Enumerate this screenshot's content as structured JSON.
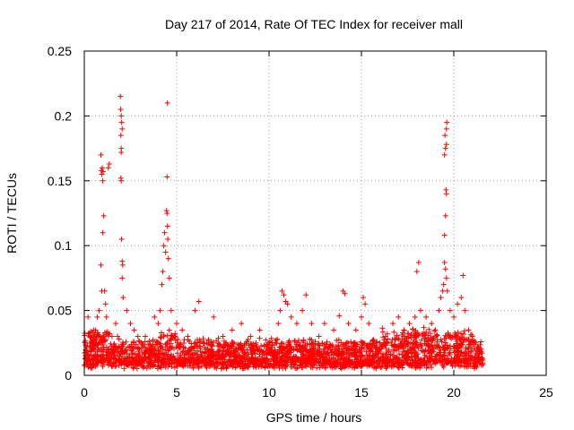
{
  "chart_data": {
    "type": "scatter",
    "title": "Day 217 of 2014, Rate Of TEC Index for receiver mall",
    "xlabel": "GPS time / hours",
    "ylabel": "ROTI / TECUs",
    "xlim": [
      0,
      25
    ],
    "ylim": [
      0,
      0.25
    ],
    "xticks": [
      0,
      5,
      10,
      15,
      20,
      25
    ],
    "xtick_labels": [
      "0",
      "5",
      "10",
      "15",
      "20",
      "25"
    ],
    "yticks": [
      0,
      0.05,
      0.1,
      0.15,
      0.2,
      0.25
    ],
    "ytick_labels": [
      "0",
      "0.05",
      "0.1",
      "0.15",
      "0.2",
      "0.25"
    ],
    "grid": true,
    "marker": "+",
    "color": "#ff0000",
    "series": [
      {
        "name": "ROTI",
        "points": [
          [
            0.1,
            0.015
          ],
          [
            0.2,
            0.045
          ],
          [
            0.3,
            0.03
          ],
          [
            0.4,
            0.02
          ],
          [
            0.5,
            0.035
          ],
          [
            0.6,
            0.025
          ],
          [
            0.7,
            0.045
          ],
          [
            0.8,
            0.05
          ],
          [
            0.9,
            0.085
          ],
          [
            0.95,
            0.065
          ],
          [
            1.0,
            0.11
          ],
          [
            1.05,
            0.123
          ],
          [
            1.1,
            0.065
          ],
          [
            1.15,
            0.055
          ],
          [
            1.2,
            0.045
          ],
          [
            0.9,
            0.17
          ],
          [
            0.92,
            0.158
          ],
          [
            0.95,
            0.155
          ],
          [
            0.97,
            0.16
          ],
          [
            1.0,
            0.15
          ],
          [
            1.02,
            0.157
          ],
          [
            1.35,
            0.163
          ],
          [
            1.3,
            0.16
          ],
          [
            1.5,
            0.03
          ],
          [
            1.7,
            0.04
          ],
          [
            1.8,
            0.03
          ],
          [
            1.95,
            0.215
          ],
          [
            1.97,
            0.205
          ],
          [
            2.0,
            0.2
          ],
          [
            2.02,
            0.195
          ],
          [
            2.05,
            0.19
          ],
          [
            1.98,
            0.185
          ],
          [
            2.0,
            0.175
          ],
          [
            2.0,
            0.172
          ],
          [
            1.98,
            0.152
          ],
          [
            2.0,
            0.15
          ],
          [
            2.02,
            0.105
          ],
          [
            2.05,
            0.088
          ],
          [
            2.08,
            0.085
          ],
          [
            2.05,
            0.075
          ],
          [
            2.1,
            0.06
          ],
          [
            2.3,
            0.05
          ],
          [
            2.5,
            0.04
          ],
          [
            2.7,
            0.035
          ],
          [
            2.9,
            0.03
          ],
          [
            3.1,
            0.025
          ],
          [
            3.3,
            0.03
          ],
          [
            3.6,
            0.02
          ],
          [
            3.8,
            0.045
          ],
          [
            4.0,
            0.04
          ],
          [
            4.1,
            0.05
          ],
          [
            4.2,
            0.07
          ],
          [
            4.25,
            0.08
          ],
          [
            4.3,
            0.1
          ],
          [
            4.35,
            0.11
          ],
          [
            4.4,
            0.095
          ],
          [
            4.45,
            0.127
          ],
          [
            4.48,
            0.125
          ],
          [
            4.5,
            0.115
          ],
          [
            4.52,
            0.105
          ],
          [
            4.55,
            0.09
          ],
          [
            4.6,
            0.075
          ],
          [
            4.5,
            0.21
          ],
          [
            4.48,
            0.153
          ],
          [
            4.7,
            0.05
          ],
          [
            5.0,
            0.04
          ],
          [
            5.3,
            0.035
          ],
          [
            5.6,
            0.03
          ],
          [
            6.0,
            0.05
          ],
          [
            6.2,
            0.057
          ],
          [
            6.5,
            0.025
          ],
          [
            7.0,
            0.045
          ],
          [
            7.5,
            0.03
          ],
          [
            8.0,
            0.035
          ],
          [
            8.5,
            0.04
          ],
          [
            9.0,
            0.03
          ],
          [
            9.5,
            0.035
          ],
          [
            10.0,
            0.025
          ],
          [
            10.5,
            0.04
          ],
          [
            10.6,
            0.05
          ],
          [
            10.7,
            0.065
          ],
          [
            10.8,
            0.062
          ],
          [
            10.9,
            0.057
          ],
          [
            11.0,
            0.055
          ],
          [
            11.2,
            0.045
          ],
          [
            11.5,
            0.04
          ],
          [
            11.8,
            0.05
          ],
          [
            12.0,
            0.062
          ],
          [
            12.3,
            0.04
          ],
          [
            12.7,
            0.03
          ],
          [
            13.0,
            0.04
          ],
          [
            13.5,
            0.035
          ],
          [
            13.8,
            0.046
          ],
          [
            14.0,
            0.065
          ],
          [
            14.1,
            0.063
          ],
          [
            14.3,
            0.04
          ],
          [
            14.7,
            0.035
          ],
          [
            15.0,
            0.045
          ],
          [
            15.1,
            0.06
          ],
          [
            15.2,
            0.055
          ],
          [
            15.4,
            0.04
          ],
          [
            15.8,
            0.025
          ],
          [
            16.0,
            0.02
          ],
          [
            16.3,
            0.03
          ],
          [
            16.7,
            0.04
          ],
          [
            17.0,
            0.045
          ],
          [
            17.3,
            0.035
          ],
          [
            17.6,
            0.04
          ],
          [
            17.9,
            0.045
          ],
          [
            18.0,
            0.08
          ],
          [
            18.1,
            0.087
          ],
          [
            18.2,
            0.05
          ],
          [
            18.5,
            0.045
          ],
          [
            18.8,
            0.04
          ],
          [
            19.0,
            0.035
          ],
          [
            19.2,
            0.05
          ],
          [
            19.3,
            0.06
          ],
          [
            19.4,
            0.065
          ],
          [
            19.5,
            0.087
          ],
          [
            19.55,
            0.082
          ],
          [
            19.6,
            0.075
          ],
          [
            19.45,
            0.07
          ],
          [
            19.65,
            0.065
          ],
          [
            19.5,
            0.108
          ],
          [
            19.55,
            0.123
          ],
          [
            19.6,
            0.14
          ],
          [
            19.58,
            0.143
          ],
          [
            19.5,
            0.17
          ],
          [
            19.55,
            0.175
          ],
          [
            19.6,
            0.178
          ],
          [
            19.52,
            0.185
          ],
          [
            19.6,
            0.19
          ],
          [
            19.62,
            0.195
          ],
          [
            19.8,
            0.05
          ],
          [
            20.0,
            0.045
          ],
          [
            20.2,
            0.055
          ],
          [
            20.4,
            0.06
          ],
          [
            20.5,
            0.077
          ],
          [
            20.6,
            0.05
          ],
          [
            20.8,
            0.035
          ],
          [
            21.0,
            0.03
          ],
          [
            21.2,
            0.025
          ],
          [
            21.4,
            0.02
          ],
          [
            21.5,
            0.02
          ]
        ]
      }
    ]
  }
}
